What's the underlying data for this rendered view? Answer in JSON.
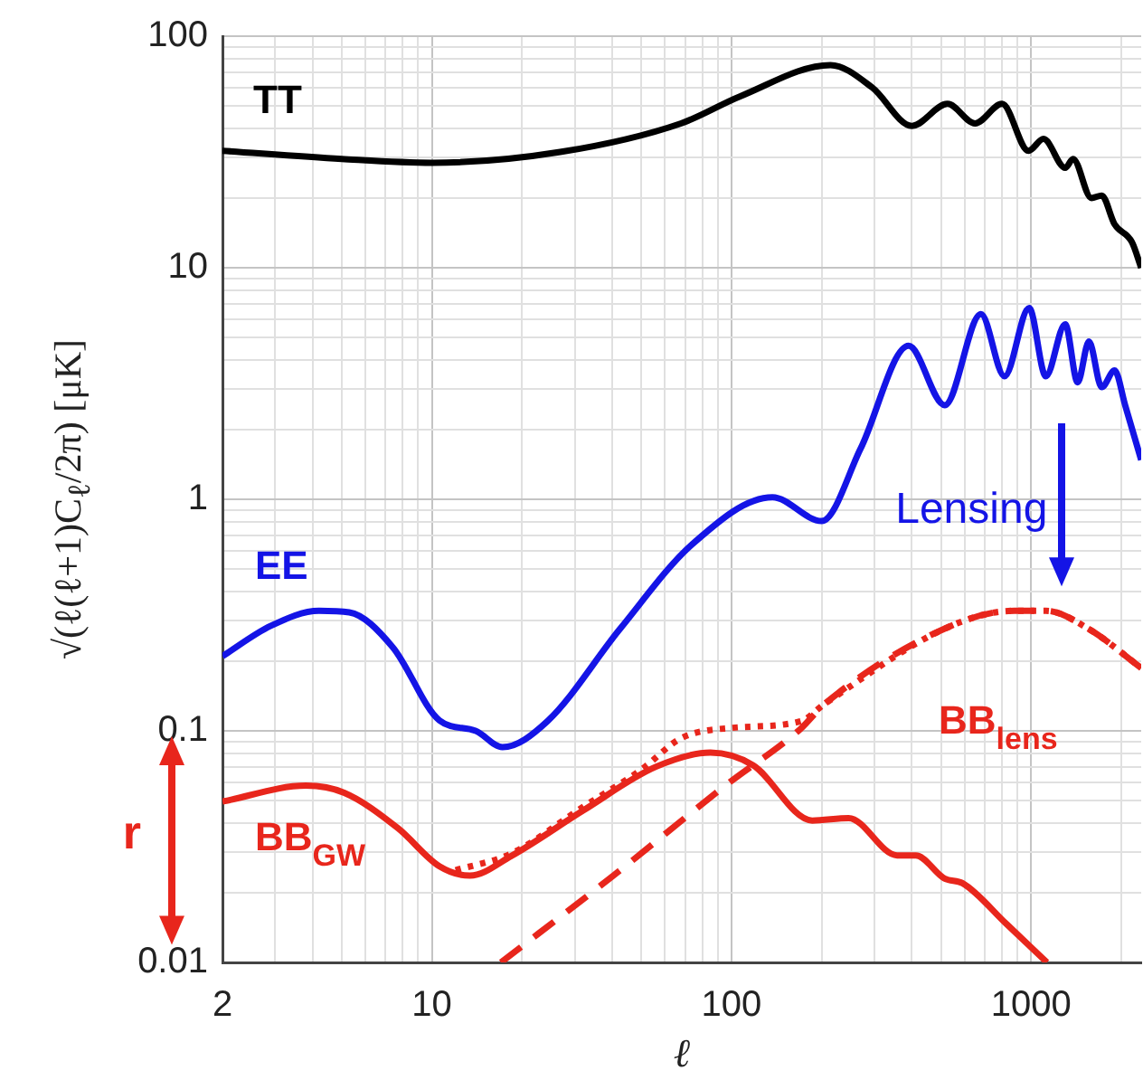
{
  "chart_data": {
    "type": "line",
    "xlabel": "ℓ",
    "ylabel": "√(ℓ(ℓ+1)C$_{ℓ}$/2π)   [μK]",
    "log": "xy",
    "grid": true,
    "xlim": [
      2,
      2330
    ],
    "ylim": [
      0.01,
      100
    ],
    "xticks": [
      2,
      {
        "value": 3,
        "label": null
      },
      {
        "value": 4,
        "label": null
      },
      {
        "value": 5,
        "label": null
      },
      {
        "value": 6,
        "label": null
      },
      {
        "value": 7,
        "label": null
      },
      {
        "value": 8,
        "label": null
      },
      {
        "value": 9,
        "label": null
      },
      10,
      {
        "value": 20,
        "label": null
      },
      {
        "value": 30,
        "label": null
      },
      {
        "value": 40,
        "label": null
      },
      {
        "value": 50,
        "label": null
      },
      {
        "value": 60,
        "label": null
      },
      {
        "value": 70,
        "label": null
      },
      {
        "value": 80,
        "label": null
      },
      {
        "value": 90,
        "label": null
      },
      100,
      {
        "value": 200,
        "label": null
      },
      {
        "value": 300,
        "label": null
      },
      {
        "value": 400,
        "label": null
      },
      {
        "value": 500,
        "label": null
      },
      {
        "value": 600,
        "label": null
      },
      {
        "value": 700,
        "label": null
      },
      {
        "value": 800,
        "label": null
      },
      {
        "value": 900,
        "label": null
      },
      1000,
      {
        "value": 2000,
        "label": null
      }
    ],
    "yticks": [
      0.01,
      {
        "value": 0.02,
        "label": null
      },
      {
        "value": 0.03,
        "label": null
      },
      {
        "value": 0.04,
        "label": null
      },
      {
        "value": 0.05,
        "label": null
      },
      {
        "value": 0.06,
        "label": null
      },
      {
        "value": 0.07,
        "label": null
      },
      {
        "value": 0.08,
        "label": null
      },
      {
        "value": 0.09,
        "label": null
      },
      0.1,
      {
        "value": 0.2,
        "label": null
      },
      {
        "value": 0.3,
        "label": null
      },
      {
        "value": 0.4,
        "label": null
      },
      {
        "value": 0.5,
        "label": null
      },
      {
        "value": 0.6,
        "label": null
      },
      {
        "value": 0.7,
        "label": null
      },
      {
        "value": 0.8,
        "label": null
      },
      {
        "value": 0.9,
        "label": null
      },
      1,
      {
        "value": 2,
        "label": null
      },
      {
        "value": 3,
        "label": null
      },
      {
        "value": 4,
        "label": null
      },
      {
        "value": 5,
        "label": null
      },
      {
        "value": 6,
        "label": null
      },
      {
        "value": 7,
        "label": null
      },
      {
        "value": 8,
        "label": null
      },
      {
        "value": 9,
        "label": null
      },
      10,
      {
        "value": 20,
        "label": null
      },
      {
        "value": 30,
        "label": null
      },
      {
        "value": 40,
        "label": null
      },
      {
        "value": 50,
        "label": null
      },
      {
        "value": 60,
        "label": null
      },
      {
        "value": 70,
        "label": null
      },
      {
        "value": 80,
        "label": null
      },
      {
        "value": 90,
        "label": null
      },
      100
    ],
    "series": [
      {
        "name": "TT",
        "color": "#000000",
        "line_style": "solid",
        "x": [
          2,
          5,
          10,
          26.8,
          67.8,
          107,
          214,
          295,
          400,
          526,
          650,
          800,
          980,
          1100,
          1300,
          1380,
          1590,
          1720,
          1900,
          2170,
          2330
        ],
        "values": [
          32,
          29.5,
          28.4,
          31.6,
          42,
          55,
          75,
          60,
          41,
          51,
          42,
          51,
          32,
          36,
          27,
          29.5,
          20,
          20.5,
          15.4,
          12.9,
          10
        ]
      },
      {
        "name": "EE",
        "color": "#1414e6",
        "line_style": "solid",
        "x": [
          2,
          2.9,
          4.2,
          5.3,
          7.4,
          10.6,
          14,
          17.2,
          24.3,
          42.4,
          74,
          137,
          200,
          270,
          390,
          515,
          680,
          815,
          985,
          1120,
          1300,
          1430,
          1560,
          1720,
          1900,
          2060,
          2330
        ],
        "values": [
          0.21,
          0.284,
          0.33,
          0.325,
          0.23,
          0.111,
          0.1,
          0.085,
          0.11,
          0.275,
          0.64,
          1.02,
          0.805,
          1.66,
          4.6,
          2.55,
          6.3,
          3.4,
          6.7,
          3.4,
          5.7,
          3.2,
          4.8,
          3.05,
          3.6,
          2.55,
          1.48
        ]
      },
      {
        "name": "BB$_{GW}$",
        "color": "#e8261c",
        "line_style": "solid",
        "x": [
          2,
          3.8,
          5.1,
          7.7,
          10.6,
          13.4,
          18.4,
          32,
          56,
          85,
          118,
          186,
          246,
          357,
          412,
          515,
          590,
          830,
          1130
        ],
        "values": [
          0.0495,
          0.058,
          0.054,
          0.038,
          0.026,
          0.0237,
          0.0288,
          0.0453,
          0.07,
          0.0805,
          0.071,
          0.041,
          0.042,
          0.029,
          0.029,
          0.023,
          0.022,
          0.0146,
          0.01
        ]
      },
      {
        "name": "BB$_{lens}$",
        "color": "#e8261c",
        "line_style": "dashed",
        "x": [
          17,
          40,
          97,
          170,
          205,
          540,
          880,
          1120,
          1560,
          2330
        ],
        "values": [
          0.01,
          0.0235,
          0.059,
          0.102,
          0.131,
          0.284,
          0.33,
          0.33,
          0.275,
          0.187
        ]
      },
      {
        "color": "#e8261c",
        "line_style": "dotted",
        "x": [
          12,
          18.4,
          32,
          50,
          68,
          100,
          170,
          205,
          540,
          880,
          1120,
          1560,
          2330
        ],
        "values": [
          0.025,
          0.0295,
          0.047,
          0.068,
          0.093,
          0.103,
          0.11,
          0.131,
          0.284,
          0.33,
          0.33,
          0.275,
          0.187
        ]
      }
    ],
    "annotations": [
      "Lensing",
      "r"
    ]
  }
}
